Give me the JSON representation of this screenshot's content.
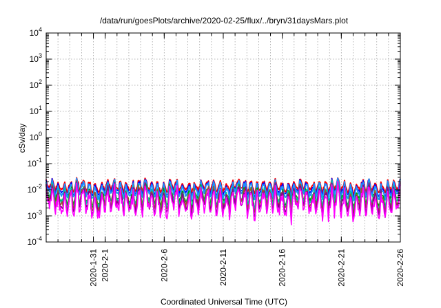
{
  "chart_data": {
    "type": "line",
    "title": "/data/run/goesPlots/archive/2020-02-25/flux/../bryn/31daysMars.plot",
    "xlabel": "Coordinated Universal Time (UTC)",
    "ylabel": "cSv/day",
    "x_range_days": [
      27.0,
      57.0
    ],
    "x_reference": "2020-01-01",
    "xticks": [
      {
        "day": 31,
        "label": "2020-1-31"
      },
      {
        "day": 32,
        "label": "2020-2-1"
      },
      {
        "day": 37,
        "label": "2020-2-6"
      },
      {
        "day": 42,
        "label": "2020-2-11"
      },
      {
        "day": 47,
        "label": "2020-2-16"
      },
      {
        "day": 52,
        "label": "2020-2-21"
      },
      {
        "day": 57,
        "label": "2020-2-26"
      }
    ],
    "yscale": "log",
    "ylim": [
      0.0001,
      10000
    ],
    "yticks": [
      {
        "base": "10",
        "exp": "4",
        "value": 10000
      },
      {
        "base": "10",
        "exp": "3",
        "value": 1000
      },
      {
        "base": "10",
        "exp": "2",
        "value": 100
      },
      {
        "base": "10",
        "exp": "1",
        "value": 10
      },
      {
        "base": "10",
        "exp": "0",
        "value": 1
      },
      {
        "base": "10",
        "exp": "-1",
        "value": 0.1
      },
      {
        "base": "10",
        "exp": "-2",
        "value": 0.01
      },
      {
        "base": "10",
        "exp": "-3",
        "value": 0.001
      },
      {
        "base": "10",
        "exp": "-4",
        "value": 0.0001
      }
    ],
    "grid": true,
    "series": [
      {
        "color": "#ff0000",
        "base": 0.0135
      },
      {
        "color": "#0000ff",
        "base": 0.0112
      },
      {
        "color": "#1e90ff",
        "base": 0.0095
      },
      {
        "color": "#00a000",
        "base": 0.0058
      },
      {
        "color": "#00c8a0",
        "base": 0.0052
      },
      {
        "color": "#a0522d",
        "base": 0.0045
      },
      {
        "color": "#8b008b",
        "base": 0.0038
      },
      {
        "color": "#ff00ff",
        "base": 0.003
      }
    ]
  }
}
